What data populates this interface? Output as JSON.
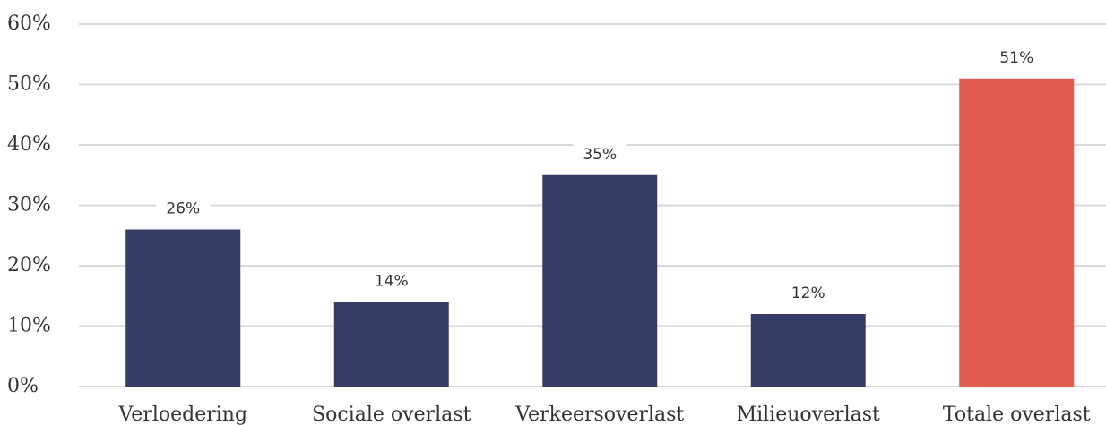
{
  "chart_data": {
    "type": "bar",
    "categories": [
      "Verloedering",
      "Sociale overlast",
      "Verkeersoverlast",
      "Milieuoverlast",
      "Totale overlast"
    ],
    "values": [
      26,
      14,
      35,
      12,
      51
    ],
    "value_labels": [
      "26%",
      "14%",
      "35%",
      "12%",
      "51%"
    ],
    "colors": [
      "#373c66",
      "#373c66",
      "#373c66",
      "#373c66",
      "#e05c50"
    ],
    "ylim": [
      0,
      60
    ],
    "yticks": [
      {
        "value": 0,
        "label": "0%"
      },
      {
        "value": 10,
        "label": "10%"
      },
      {
        "value": 20,
        "label": "20%"
      },
      {
        "value": 30,
        "label": "30%"
      },
      {
        "value": 40,
        "label": "40%"
      },
      {
        "value": 50,
        "label": "50%"
      },
      {
        "value": 60,
        "label": "60%"
      }
    ],
    "grid": true
  }
}
